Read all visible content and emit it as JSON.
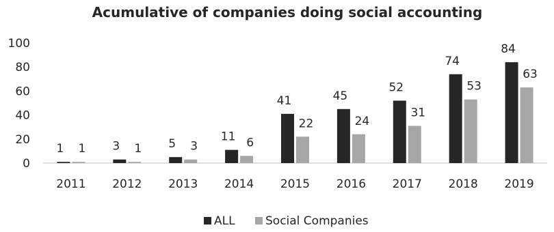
{
  "chart_data": {
    "type": "bar",
    "title": "Acumulative of companies doing social accounting",
    "xlabel": "",
    "ylabel": "",
    "categories": [
      "2011",
      "2012",
      "2013",
      "2014",
      "2015",
      "2016",
      "2017",
      "2018",
      "2019"
    ],
    "series": [
      {
        "name": "ALL",
        "values": [
          1,
          3,
          5,
          11,
          41,
          45,
          52,
          74,
          84
        ],
        "color": "#262626"
      },
      {
        "name": "Social Companies",
        "values": [
          1,
          1,
          3,
          6,
          22,
          24,
          31,
          53,
          63
        ],
        "color": "#a6a6a6"
      }
    ],
    "ylim": [
      0,
      100
    ],
    "yticks": [
      "0",
      "20",
      "40",
      "60",
      "80",
      "100"
    ],
    "grid": false,
    "data_labels": true,
    "legend_position": "bottom"
  }
}
